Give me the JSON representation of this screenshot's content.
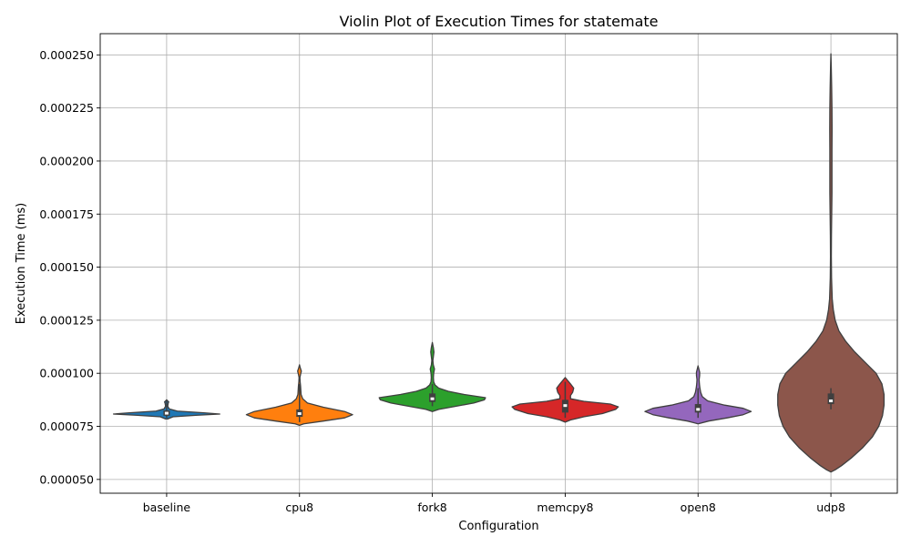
{
  "chart_data": {
    "type": "violin",
    "title": "Violin Plot of Execution Times for statemate",
    "xlabel": "Configuration",
    "ylabel": "Execution Time (ms)",
    "categories": [
      "baseline",
      "cpu8",
      "fork8",
      "memcpy8",
      "open8",
      "udp8"
    ],
    "ylim": [
      4.35e-05,
      0.00026
    ],
    "yticks": [
      5e-05,
      7.5e-05,
      0.0001,
      0.000125,
      0.00015,
      0.000175,
      0.0002,
      0.000225,
      0.00025
    ],
    "ytick_labels": [
      "0.000050",
      "0.000075",
      "0.000100",
      "0.000125",
      "0.000150",
      "0.000175",
      "0.000200",
      "0.000225",
      "0.000250"
    ],
    "grid": true,
    "colors": [
      "#1f77b4",
      "#ff7f0e",
      "#2ca02c",
      "#d62728",
      "#9467bd",
      "#8c564b"
    ],
    "series": [
      {
        "name": "baseline",
        "min": 7.9e-05,
        "q1": 8e-05,
        "median": 8.12e-05,
        "q3": 8.25e-05,
        "max": 8.7e-05,
        "density": [
          [
            7.85e-05,
            0.02
          ],
          [
            7.95e-05,
            0.12
          ],
          [
            8.02e-05,
            0.55
          ],
          [
            8.08e-05,
            1.0
          ],
          [
            8.14e-05,
            0.7
          ],
          [
            8.22e-05,
            0.2
          ],
          [
            8.32e-05,
            0.05
          ],
          [
            8.45e-05,
            0.02
          ],
          [
            8.6e-05,
            0.03
          ],
          [
            8.65e-05,
            0.04
          ],
          [
            8.7e-05,
            0.02
          ],
          [
            8.75e-05,
            0.0
          ]
        ]
      },
      {
        "name": "cpu8",
        "min": 7.7e-05,
        "q1": 7.95e-05,
        "median": 8.1e-05,
        "q3": 8.3e-05,
        "max": 9.5e-05,
        "density": [
          [
            7.55e-05,
            0.0
          ],
          [
            7.62e-05,
            0.08
          ],
          [
            7.75e-05,
            0.45
          ],
          [
            7.9e-05,
            0.85
          ],
          [
            8.05e-05,
            1.0
          ],
          [
            8.2e-05,
            0.85
          ],
          [
            8.4e-05,
            0.45
          ],
          [
            8.6e-05,
            0.15
          ],
          [
            8.8e-05,
            0.06
          ],
          [
            9e-05,
            0.03
          ],
          [
            9.2e-05,
            0.025
          ],
          [
            9.4e-05,
            0.02
          ],
          [
            9.6e-05,
            0.012
          ],
          [
            9.8e-05,
            0.008
          ],
          [
            9.95e-05,
            0.02
          ],
          [
            0.000101,
            0.035
          ],
          [
            0.0001025,
            0.015
          ],
          [
            0.000104,
            0.0
          ]
        ]
      },
      {
        "name": "fork8",
        "min": 8.45e-05,
        "q1": 8.65e-05,
        "median": 8.8e-05,
        "q3": 9.05e-05,
        "max": 9.5e-05,
        "density": [
          [
            8.2e-05,
            0.0
          ],
          [
            8.3e-05,
            0.12
          ],
          [
            8.45e-05,
            0.45
          ],
          [
            8.6e-05,
            0.78
          ],
          [
            8.75e-05,
            0.98
          ],
          [
            8.85e-05,
            1.0
          ],
          [
            9e-05,
            0.6
          ],
          [
            9.15e-05,
            0.3
          ],
          [
            9.3e-05,
            0.12
          ],
          [
            9.45e-05,
            0.05
          ],
          [
            9.6e-05,
            0.025
          ],
          [
            9.8e-05,
            0.02
          ],
          [
            0.0001,
            0.025
          ],
          [
            0.000102,
            0.04
          ],
          [
            0.000104,
            0.018
          ],
          [
            0.000106,
            0.01
          ],
          [
            0.000108,
            0.02
          ],
          [
            0.00011,
            0.03
          ],
          [
            0.000112,
            0.02
          ],
          [
            0.0001145,
            0.0
          ]
        ]
      },
      {
        "name": "memcpy8",
        "min": 7.9e-05,
        "q1": 8.15e-05,
        "median": 8.48e-05,
        "q3": 8.75e-05,
        "max": 9.6e-05,
        "density": [
          [
            7.7e-05,
            0.0
          ],
          [
            7.8e-05,
            0.1
          ],
          [
            7.95e-05,
            0.35
          ],
          [
            8.1e-05,
            0.7
          ],
          [
            8.3e-05,
            0.95
          ],
          [
            8.42e-05,
            1.0
          ],
          [
            8.55e-05,
            0.85
          ],
          [
            8.68e-05,
            0.35
          ],
          [
            8.8e-05,
            0.1
          ],
          [
            8.95e-05,
            0.1
          ],
          [
            9.1e-05,
            0.14
          ],
          [
            9.3e-05,
            0.16
          ],
          [
            9.5e-05,
            0.1
          ],
          [
            9.65e-05,
            0.05
          ],
          [
            9.8e-05,
            0.0
          ]
        ]
      },
      {
        "name": "open8",
        "min": 7.9e-05,
        "q1": 8.15e-05,
        "median": 8.3e-05,
        "q3": 8.55e-05,
        "max": 9.3e-05,
        "density": [
          [
            7.62e-05,
            0.0
          ],
          [
            7.75e-05,
            0.2
          ],
          [
            7.9e-05,
            0.55
          ],
          [
            8.05e-05,
            0.85
          ],
          [
            8.2e-05,
            1.0
          ],
          [
            8.35e-05,
            0.85
          ],
          [
            8.5e-05,
            0.5
          ],
          [
            8.7e-05,
            0.18
          ],
          [
            8.9e-05,
            0.08
          ],
          [
            9.1e-05,
            0.05
          ],
          [
            9.3e-05,
            0.035
          ],
          [
            9.5e-05,
            0.025
          ],
          [
            9.7e-05,
            0.02
          ],
          [
            9.9e-05,
            0.03
          ],
          [
            0.0001005,
            0.03
          ],
          [
            0.000102,
            0.015
          ],
          [
            0.0001035,
            0.0
          ]
        ]
      },
      {
        "name": "udp8",
        "min": 8.3e-05,
        "q1": 8.55e-05,
        "median": 8.7e-05,
        "q3": 9.05e-05,
        "max": 9.3e-05,
        "density": [
          [
            5.35e-05,
            0.0
          ],
          [
            5.45e-05,
            0.08
          ],
          [
            5.65e-05,
            0.2
          ],
          [
            6e-05,
            0.38
          ],
          [
            6.5e-05,
            0.6
          ],
          [
            7e-05,
            0.78
          ],
          [
            7.5e-05,
            0.9
          ],
          [
            8e-05,
            0.97
          ],
          [
            8.5e-05,
            1.0
          ],
          [
            9e-05,
            1.0
          ],
          [
            9.5e-05,
            0.96
          ],
          [
            0.0001,
            0.85
          ],
          [
            0.000105,
            0.65
          ],
          [
            0.00011,
            0.45
          ],
          [
            0.000115,
            0.28
          ],
          [
            0.00012,
            0.15
          ],
          [
            0.000125,
            0.08
          ],
          [
            0.00013,
            0.045
          ],
          [
            0.000135,
            0.025
          ],
          [
            0.000145,
            0.012
          ],
          [
            0.000155,
            0.008
          ],
          [
            0.000165,
            0.01
          ],
          [
            0.000175,
            0.015
          ],
          [
            0.000185,
            0.02
          ],
          [
            0.000195,
            0.02
          ],
          [
            0.000205,
            0.02
          ],
          [
            0.000215,
            0.022
          ],
          [
            0.000225,
            0.02
          ],
          [
            0.000235,
            0.014
          ],
          [
            0.000245,
            0.006
          ],
          [
            0.0002505,
            0.0
          ]
        ]
      }
    ]
  }
}
